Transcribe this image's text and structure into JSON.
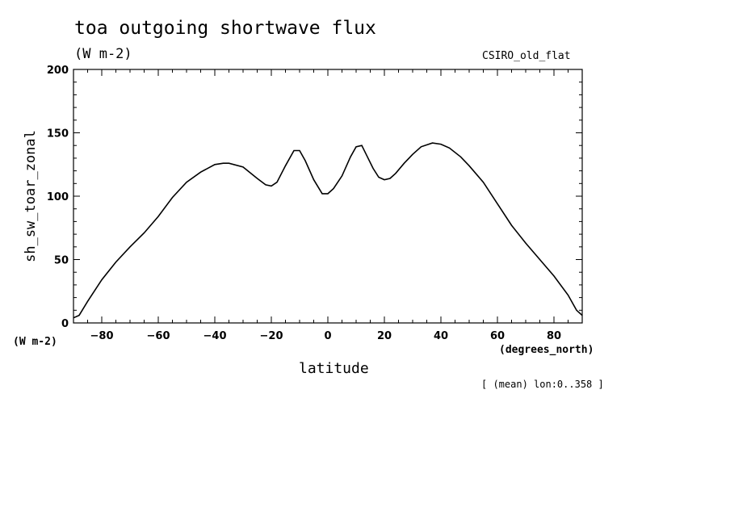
{
  "chart_data": {
    "type": "line",
    "title": "toa outgoing shortwave flux",
    "title_units": "(W m-2)",
    "model_label": "CSIRO_old_flat",
    "ylabel": "sh_sw_toar_zonal",
    "y_units": "(W m-2)",
    "xlabel": "latitude",
    "x_units": "(degrees_north)",
    "footnote": "[ (mean) lon:0..358 ]",
    "xlim": [
      -90,
      90
    ],
    "ylim": [
      0,
      200
    ],
    "xticks": [
      -80,
      -60,
      -40,
      -20,
      0,
      20,
      40,
      60,
      80
    ],
    "xtick_labels": [
      "-80",
      "-60",
      "-40",
      "-20",
      "0",
      "20",
      "40",
      "60",
      "80"
    ],
    "yticks": [
      0,
      50,
      100,
      150,
      200
    ],
    "ytick_labels": [
      "0",
      "50",
      "100",
      "150",
      "200"
    ],
    "grid": false,
    "series": [
      {
        "x": [
          -90,
          -88,
          -85,
          -80,
          -75,
          -70,
          -65,
          -60,
          -55,
          -50,
          -45,
          -40,
          -37,
          -35,
          -30,
          -25,
          -22,
          -20,
          -18,
          -15,
          -12,
          -10,
          -8,
          -5,
          -2,
          0,
          2,
          5,
          8,
          10,
          12,
          14,
          16,
          18,
          20,
          22,
          24,
          27,
          30,
          33,
          37,
          40,
          43,
          47,
          50,
          55,
          60,
          65,
          70,
          75,
          80,
          85,
          88,
          90
        ],
        "y": [
          4,
          6,
          17,
          34,
          48,
          60,
          71,
          84,
          99,
          111,
          119,
          125,
          126,
          126,
          123,
          114,
          109,
          108,
          111,
          124,
          136,
          136,
          128,
          113,
          102,
          102,
          106,
          116,
          131,
          139,
          140,
          131,
          122,
          115,
          113,
          114,
          118,
          126,
          133,
          139,
          142,
          141,
          138,
          131,
          124,
          111,
          94,
          77,
          63,
          50,
          37,
          22,
          10,
          6
        ]
      }
    ]
  }
}
